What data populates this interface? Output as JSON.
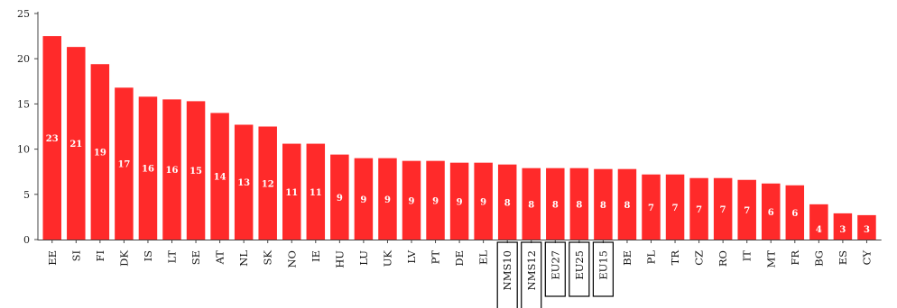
{
  "chart_data": {
    "type": "bar",
    "title": "",
    "xlabel": "",
    "ylabel": "",
    "ylim": [
      0,
      25
    ],
    "yticks": [
      0,
      5,
      10,
      15,
      20,
      25
    ],
    "grid": false,
    "bar_color": "#ff2a2a",
    "highlight_box_color": "#000000",
    "categories": [
      "EE",
      "SI",
      "FI",
      "DK",
      "IS",
      "LT",
      "SE",
      "AT",
      "NL",
      "SK",
      "NO",
      "IE",
      "HU",
      "LU",
      "UK",
      "LV",
      "PT",
      "DE",
      "EL",
      "NMS10",
      "NMS12",
      "EU27",
      "EU25",
      "EU15",
      "BE",
      "PL",
      "TR",
      "CZ",
      "RO",
      "IT",
      "MT",
      "FR",
      "BG",
      "ES",
      "CY"
    ],
    "values": [
      22.5,
      21.3,
      19.4,
      16.8,
      15.8,
      15.5,
      15.3,
      14.0,
      12.7,
      12.5,
      10.6,
      10.6,
      9.4,
      9.0,
      9.0,
      8.7,
      8.7,
      8.5,
      8.5,
      8.3,
      7.9,
      7.9,
      7.9,
      7.8,
      7.8,
      7.2,
      7.2,
      6.8,
      6.8,
      6.6,
      6.2,
      6.0,
      3.9,
      2.9,
      2.7
    ],
    "data_labels": [
      "23",
      "21",
      "19",
      "17",
      "16",
      "16",
      "15",
      "14",
      "13",
      "12",
      "11",
      "11",
      "9",
      "9",
      "9",
      "9",
      "9",
      "9",
      "9",
      "8",
      "8",
      "8",
      "8",
      "8",
      "8",
      "7",
      "7",
      "7",
      "7",
      "7",
      "6",
      "6",
      "4",
      "3",
      "3"
    ],
    "highlighted_categories": [
      "NMS10",
      "NMS12",
      "EU27",
      "EU25",
      "EU15"
    ]
  }
}
